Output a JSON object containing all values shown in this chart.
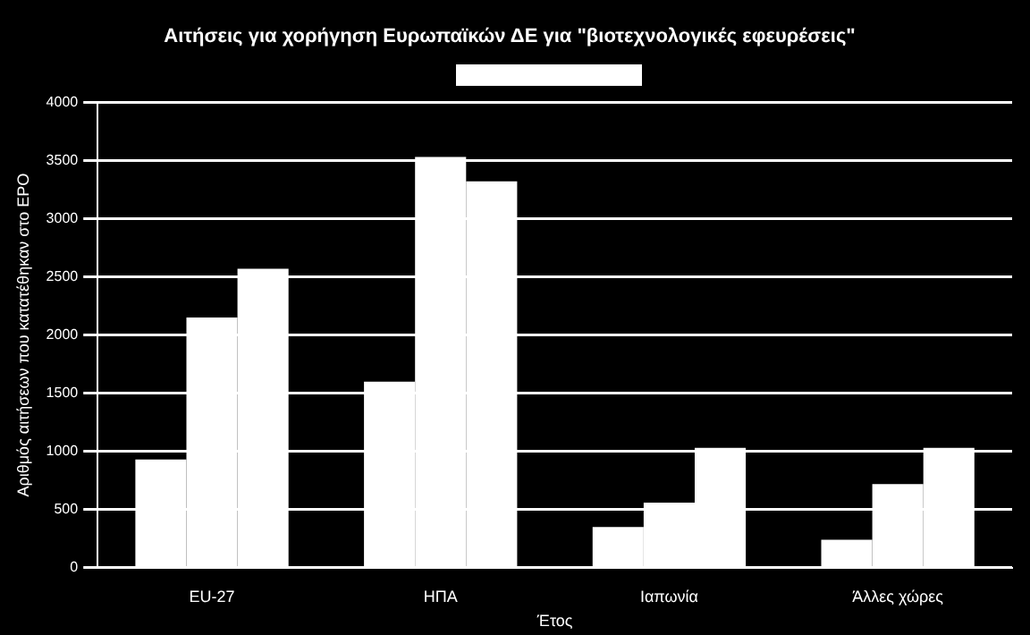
{
  "chart_data": {
    "type": "bar",
    "title": "Αιτήσεις για χορήγηση Ευρωπαϊκών ΔΕ για \"βιοτεχνολογικές εφευρέσεις\"",
    "xlabel": "Έτος",
    "ylabel": "Αριθμός αιτήσεων που κατατέθηκαν στο EPO",
    "categories": [
      "EU-27",
      "ΗΠΑ",
      "Ιαπωνία",
      "Άλλες χώρες"
    ],
    "series": [
      {
        "color": "#ffffff",
        "values": [
          930,
          1600,
          350,
          240
        ]
      },
      {
        "color": "#ffffff",
        "values": [
          2150,
          3530,
          560,
          720
        ]
      },
      {
        "color": "#ffffff",
        "values": [
          2570,
          3320,
          1030,
          1030
        ]
      }
    ],
    "ylim": [
      0,
      4000
    ],
    "yticks": [
      0,
      500,
      1000,
      1500,
      2000,
      2500,
      3000,
      3500,
      4000
    ],
    "grid": "y"
  }
}
